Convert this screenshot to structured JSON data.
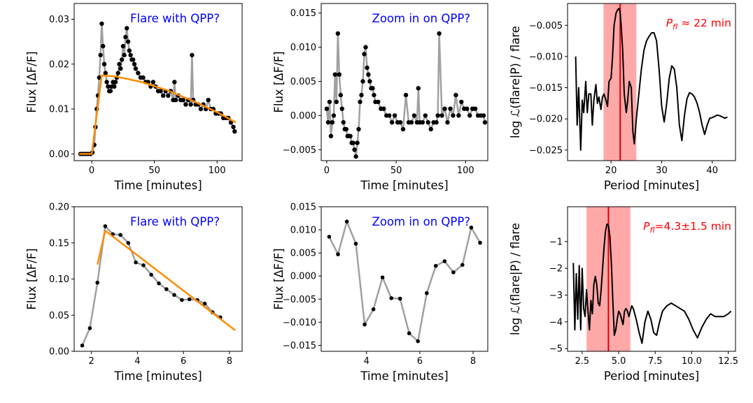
{
  "chart_data": [
    {
      "id": "p1",
      "type": "scatter",
      "title": "Flare with QPP?",
      "title_color": "#0000ff",
      "xlabel": "Time [minutes]",
      "ylabel": "Flux [ΔF/F]",
      "xlim": [
        -14,
        120
      ],
      "ylim": [
        -0.0015,
        0.0335
      ],
      "xticks": [
        0,
        50,
        100
      ],
      "xtick_labels": [
        "0",
        "50",
        "100"
      ],
      "yticks": [
        0.0,
        0.01,
        0.02,
        0.03
      ],
      "ytick_labels": [
        "0.00",
        "0.01",
        "0.02",
        "0.03"
      ],
      "series": [
        {
          "name": "data",
          "style": "points-line",
          "x": [
            -9,
            -7,
            -5,
            -3,
            -1,
            0.5,
            2,
            3,
            4,
            5,
            6,
            7,
            8,
            9,
            10,
            11,
            12,
            13,
            14,
            15,
            16,
            17,
            18,
            19,
            20,
            21,
            22,
            23,
            24,
            25,
            26,
            27,
            28,
            29,
            30,
            31,
            32,
            33,
            34,
            35,
            37,
            39,
            41,
            43,
            45,
            47,
            49,
            51,
            53,
            55,
            57,
            59,
            61,
            63,
            65,
            66,
            67,
            69,
            71,
            73,
            75,
            77,
            79,
            80,
            81,
            83,
            85,
            87,
            89,
            91,
            93,
            95,
            97,
            99,
            101,
            103,
            105,
            107,
            109,
            111,
            113,
            114
          ],
          "y": [
            0.0,
            0.0,
            0.0,
            0.0,
            0.0,
            0.0003,
            0.002,
            0.006,
            0.01,
            0.013,
            0.017,
            0.022,
            0.029,
            0.024,
            0.02,
            0.018,
            0.016,
            0.015,
            0.014,
            0.014,
            0.015,
            0.016,
            0.015,
            0.016,
            0.017,
            0.018,
            0.02,
            0.019,
            0.021,
            0.024,
            0.022,
            0.026,
            0.028,
            0.025,
            0.023,
            0.022,
            0.021,
            0.021,
            0.02,
            0.019,
            0.018,
            0.017,
            0.017,
            0.016,
            0.016,
            0.015,
            0.016,
            0.015,
            0.014,
            0.014,
            0.013,
            0.014,
            0.013,
            0.014,
            0.012,
            0.016,
            0.012,
            0.013,
            0.012,
            0.012,
            0.011,
            0.012,
            0.011,
            0.022,
            0.012,
            0.011,
            0.011,
            0.01,
            0.011,
            0.01,
            0.012,
            0.01,
            0.01,
            0.009,
            0.009,
            0.009,
            0.008,
            0.008,
            0.008,
            0.007,
            0.006,
            0.005
          ]
        },
        {
          "name": "model",
          "style": "line",
          "color": "#ff8c00",
          "x": [
            -10,
            0,
            8,
            20,
            40,
            60,
            80,
            100,
            115
          ],
          "y": [
            0.0,
            0.0,
            0.0175,
            0.0172,
            0.016,
            0.0142,
            0.0119,
            0.0093,
            0.007
          ]
        }
      ]
    },
    {
      "id": "p2",
      "type": "scatter",
      "title": "Zoom in on QPP?",
      "title_color": "#0000ff",
      "xlabel": "Time [minutes]",
      "ylabel": "Flux [ΔF/F]",
      "xlim": [
        -4,
        116
      ],
      "ylim": [
        -0.0066,
        0.0164
      ],
      "xticks": [
        0,
        50,
        100
      ],
      "xtick_labels": [
        "0",
        "50",
        "100"
      ],
      "yticks": [
        -0.005,
        0.0,
        0.005,
        0.01,
        0.015
      ],
      "ytick_labels": [
        "−0.005",
        "0.000",
        "0.005",
        "0.010",
        "0.015"
      ],
      "series": [
        {
          "name": "residuals",
          "style": "points-line",
          "x": [
            0,
            1,
            2,
            3,
            4,
            5,
            6,
            7,
            8,
            9,
            10,
            11,
            12,
            13,
            14,
            15,
            16,
            17,
            18,
            19,
            20,
            21,
            22,
            23,
            24,
            25,
            26,
            27,
            28,
            29,
            30,
            31,
            32,
            33,
            34,
            35,
            37,
            39,
            41,
            43,
            45,
            47,
            49,
            51,
            53,
            55,
            57,
            59,
            61,
            63,
            65,
            66,
            67,
            69,
            71,
            73,
            75,
            77,
            79,
            80,
            81,
            83,
            85,
            87,
            89,
            91,
            93,
            95,
            97,
            99,
            101,
            103,
            105,
            107,
            109,
            111,
            113,
            114
          ],
          "y": [
            0.001,
            -0.001,
            0.002,
            -0.003,
            -0.001,
            0.0,
            0.006,
            0.002,
            0.012,
            0.006,
            0.003,
            0.001,
            -0.001,
            -0.002,
            -0.002,
            -0.003,
            -0.003,
            -0.003,
            -0.004,
            -0.004,
            -0.005,
            -0.006,
            -0.004,
            -0.002,
            0.002,
            0.003,
            0.005,
            0.009,
            0.01,
            0.007,
            0.006,
            0.005,
            0.004,
            0.004,
            0.003,
            0.002,
            0.002,
            0.001,
            0.001,
            0.0,
            0.0,
            -0.001,
            0.0,
            -0.001,
            -0.001,
            -0.002,
            0.003,
            -0.001,
            -0.001,
            0.0,
            -0.001,
            0.004,
            -0.001,
            -0.001,
            0.0,
            -0.001,
            -0.002,
            -0.001,
            -0.001,
            0.0,
            0.012,
            0.0,
            0.001,
            -0.001,
            0.001,
            0.0,
            0.003,
            0.0,
            0.002,
            0.001,
            0.001,
            0.0,
            0.001,
            0.001,
            0.0,
            0.0,
            0.0,
            -0.001
          ]
        }
      ]
    },
    {
      "id": "p3",
      "type": "line",
      "xlabel": "Period [minutes]",
      "ylabel": "log ℒ(flare|P) / flare",
      "xlim": [
        11.4,
        44.6
      ],
      "ylim": [
        -0.0267,
        -0.0015
      ],
      "xticks": [
        20,
        30,
        40
      ],
      "xtick_labels": [
        "20",
        "30",
        "40"
      ],
      "yticks": [
        -0.025,
        -0.02,
        -0.015,
        -0.01,
        -0.005
      ],
      "ytick_labels": [
        "−0.025",
        "−0.020",
        "−0.015",
        "−0.010",
        "−0.005"
      ],
      "band": [
        18.5,
        25.0
      ],
      "vline": 21.8,
      "annotation": {
        "sym": "P",
        "sub": "fl",
        "text": "≈ 22 min",
        "color": "#ff0000"
      },
      "series": [
        {
          "name": "likelihood",
          "style": "line",
          "x": [
            13,
            13.3,
            13.6,
            14,
            14.3,
            14.6,
            15,
            15.3,
            15.6,
            16,
            16.3,
            16.6,
            17,
            17.3,
            17.6,
            18,
            18.3,
            18.6,
            19,
            19.3,
            19.6,
            20,
            20.3,
            20.6,
            21,
            21.3,
            21.6,
            21.8,
            22,
            22.3,
            22.6,
            23,
            23.3,
            23.6,
            24,
            24.3,
            24.6,
            25,
            25.5,
            26,
            26.5,
            27,
            27.5,
            28,
            28.5,
            29,
            29.5,
            30,
            30.5,
            31,
            31.5,
            32,
            32.5,
            33,
            33.5,
            34,
            34.5,
            35,
            35.5,
            36,
            36.5,
            37,
            37.5,
            38,
            38.5,
            39,
            39.5,
            40,
            40.5,
            41,
            41.5,
            42,
            42.5,
            43
          ],
          "y": [
            -0.01,
            -0.021,
            -0.015,
            -0.025,
            -0.017,
            -0.019,
            -0.014,
            -0.019,
            -0.016,
            -0.016,
            -0.021,
            -0.017,
            -0.0145,
            -0.0175,
            -0.0165,
            -0.0185,
            -0.0165,
            -0.016,
            -0.017,
            -0.018,
            -0.014,
            -0.0135,
            -0.01,
            -0.005,
            -0.003,
            -0.0025,
            -0.0023,
            -0.003,
            -0.005,
            -0.009,
            -0.016,
            -0.019,
            -0.017,
            -0.014,
            -0.015,
            -0.022,
            -0.024,
            -0.02,
            -0.016,
            -0.012,
            -0.009,
            -0.0075,
            -0.0068,
            -0.0062,
            -0.0062,
            -0.0075,
            -0.012,
            -0.018,
            -0.0205,
            -0.0175,
            -0.0135,
            -0.0115,
            -0.012,
            -0.015,
            -0.021,
            -0.0235,
            -0.0195,
            -0.0168,
            -0.0158,
            -0.016,
            -0.0165,
            -0.0175,
            -0.019,
            -0.021,
            -0.0225,
            -0.021,
            -0.0199,
            -0.0198,
            -0.0196,
            -0.0194,
            -0.0195,
            -0.0197,
            -0.0199,
            -0.0197
          ]
        }
      ]
    },
    {
      "id": "p4",
      "type": "scatter",
      "title": "Flare with QPP?",
      "title_color": "#0000ff",
      "xlabel": "Time [minutes]",
      "ylabel": "Flux [ΔF/F]",
      "xlim": [
        1.25,
        8.55
      ],
      "ylim": [
        0.0,
        0.2
      ],
      "xticks": [
        2,
        4,
        6,
        8
      ],
      "xtick_labels": [
        "2",
        "4",
        "6",
        "8"
      ],
      "yticks": [
        0.0,
        0.05,
        0.1,
        0.15,
        0.2
      ],
      "ytick_labels": [
        "0.00",
        "0.05",
        "0.10",
        "0.15",
        "0.20"
      ],
      "series": [
        {
          "name": "data",
          "style": "points-line",
          "x": [
            1.6,
            1.93,
            2.26,
            2.6,
            2.93,
            3.26,
            3.6,
            3.93,
            4.26,
            4.6,
            4.93,
            5.26,
            5.6,
            5.93,
            6.26,
            6.6,
            6.93,
            7.26,
            7.6
          ],
          "y": [
            0.008,
            0.032,
            0.095,
            0.173,
            0.162,
            0.161,
            0.15,
            0.123,
            0.119,
            0.106,
            0.094,
            0.086,
            0.078,
            0.071,
            0.072,
            0.071,
            0.066,
            0.054,
            0.047
          ]
        },
        {
          "name": "model",
          "style": "line",
          "color": "#ff8c00",
          "x": [
            2.6,
            8.25
          ],
          "y": [
            0.167,
            0.029
          ]
        },
        {
          "name": "rise",
          "style": "line",
          "color": "#ff8c00",
          "x": [
            2.26,
            2.6
          ],
          "y": [
            0.12,
            0.167
          ]
        }
      ]
    },
    {
      "id": "p5",
      "type": "scatter",
      "title": "Zoom in on QPP?",
      "title_color": "#0000ff",
      "xlabel": "Time [minutes]",
      "ylabel": "Flux [ΔF/F]",
      "xlim": [
        2.3,
        8.55
      ],
      "ylim": [
        -0.0163,
        0.015
      ],
      "xticks": [
        4,
        6,
        8
      ],
      "xtick_labels": [
        "4",
        "6",
        "8"
      ],
      "yticks": [
        -0.015,
        -0.01,
        -0.005,
        0.0,
        0.005,
        0.01,
        0.015
      ],
      "ytick_labels": [
        "−0.015",
        "−0.010",
        "−0.005",
        "0.000",
        "0.005",
        "0.010",
        "0.015"
      ],
      "series": [
        {
          "name": "residuals",
          "style": "points-line",
          "x": [
            2.6,
            2.93,
            3.26,
            3.6,
            3.93,
            4.26,
            4.6,
            4.93,
            5.26,
            5.6,
            5.93,
            6.26,
            6.6,
            6.93,
            7.26,
            7.6,
            7.93,
            8.26
          ],
          "y": [
            0.0085,
            0.0047,
            0.0118,
            0.007,
            -0.0105,
            -0.0072,
            -0.0003,
            -0.0048,
            -0.0049,
            -0.0124,
            -0.0141,
            -0.0037,
            0.0022,
            0.0032,
            0.0008,
            0.0024,
            0.0105,
            0.0072
          ]
        }
      ]
    },
    {
      "id": "p6",
      "type": "line",
      "xlabel": "Period [minutes]",
      "ylabel": "log ℒ(flare|P) / flare",
      "xlim": [
        1.5,
        13.0
      ],
      "ylim": [
        -5.1,
        0.3
      ],
      "xticks": [
        2.5,
        5.0,
        7.5,
        10.0,
        12.5
      ],
      "xtick_labels": [
        "2.5",
        "5.0",
        "7.5",
        "10.0",
        "12.5"
      ],
      "yticks": [
        -5,
        -4,
        -3,
        -2,
        -1
      ],
      "ytick_labels": [
        "−5",
        "−4",
        "−3",
        "−2",
        "−1"
      ],
      "band": [
        2.8,
        5.8
      ],
      "vline": 4.3,
      "annotation": {
        "sym": "P",
        "sub": "fl",
        "text": "=4.3±1.5 min",
        "color": "#ff0000"
      },
      "series": [
        {
          "name": "likelihood",
          "style": "line",
          "x": [
            1.9,
            2.0,
            2.1,
            2.2,
            2.3,
            2.4,
            2.5,
            2.6,
            2.7,
            2.8,
            2.9,
            3.0,
            3.1,
            3.2,
            3.3,
            3.4,
            3.5,
            3.6,
            3.7,
            3.8,
            3.9,
            4.0,
            4.1,
            4.2,
            4.3,
            4.4,
            4.5,
            4.6,
            4.7,
            4.8,
            4.9,
            5.0,
            5.1,
            5.2,
            5.3,
            5.4,
            5.5,
            5.6,
            5.7,
            5.8,
            5.9,
            6.0,
            6.2,
            6.4,
            6.6,
            6.8,
            7.0,
            7.2,
            7.4,
            7.6,
            7.8,
            8.0,
            8.3,
            8.6,
            8.9,
            9.2,
            9.5,
            9.8,
            10.1,
            10.4,
            10.7,
            11.0,
            11.3,
            11.6,
            11.9,
            12.2,
            12.5,
            12.7
          ],
          "y": [
            -1.8,
            -4.3,
            -2.2,
            -3.9,
            -1.9,
            -4.3,
            -2.0,
            -3.5,
            -3.8,
            -2.8,
            -3.6,
            -4.3,
            -3.2,
            -3.7,
            -2.6,
            -2.3,
            -2.6,
            -3.3,
            -3.4,
            -2.8,
            -2.0,
            -1.2,
            -0.6,
            -0.35,
            -0.4,
            -0.8,
            -1.8,
            -3.2,
            -4.5,
            -4.3,
            -3.9,
            -3.6,
            -3.7,
            -3.9,
            -4.1,
            -3.6,
            -3.5,
            -3.6,
            -3.8,
            -3.6,
            -3.4,
            -3.5,
            -3.9,
            -4.4,
            -4.8,
            -4.0,
            -3.6,
            -3.9,
            -4.4,
            -4.5,
            -4.0,
            -3.6,
            -3.4,
            -3.3,
            -3.4,
            -3.5,
            -3.6,
            -3.9,
            -4.3,
            -4.6,
            -4.2,
            -3.9,
            -3.7,
            -3.8,
            -3.8,
            -3.8,
            -3.7,
            -3.6
          ]
        }
      ]
    }
  ]
}
